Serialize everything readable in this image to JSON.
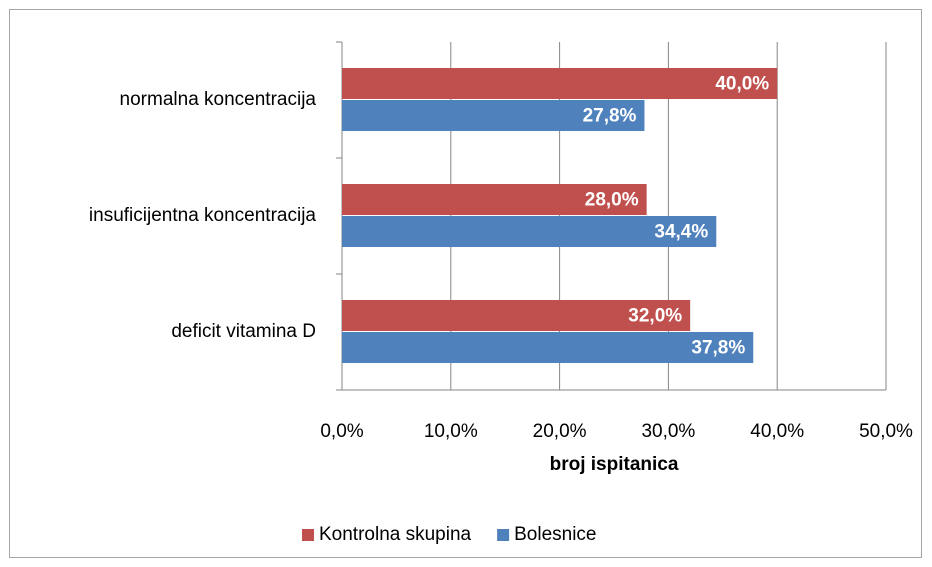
{
  "chart_data": {
    "type": "bar",
    "orientation": "horizontal",
    "x_axis_label": "broj ispitanica",
    "categories": [
      "normalna koncentracija",
      "insuficijentna koncentracija",
      "deficit vitamina D"
    ],
    "series": [
      {
        "name": "Kontrolna skupina",
        "color": "#c0504d",
        "values": [
          40.0,
          28.0,
          32.0
        ],
        "value_labels": [
          "40,0%",
          "28,0%",
          "32,0%"
        ]
      },
      {
        "name": "Bolesnice",
        "color": "#4f81bd",
        "values": [
          27.8,
          34.4,
          37.8
        ],
        "value_labels": [
          "27,8%",
          "34,4%",
          "37,8%"
        ]
      }
    ],
    "xlim": [
      0,
      50
    ],
    "xticks": [
      {
        "value": 0,
        "label": "0,0%"
      },
      {
        "value": 10,
        "label": "10,0%"
      },
      {
        "value": 20,
        "label": "20,0%"
      },
      {
        "value": 30,
        "label": "30,0%"
      },
      {
        "value": 40,
        "label": "40,0%"
      },
      {
        "value": 50,
        "label": "50,0%"
      }
    ],
    "grid": true,
    "legend": "bottom"
  }
}
